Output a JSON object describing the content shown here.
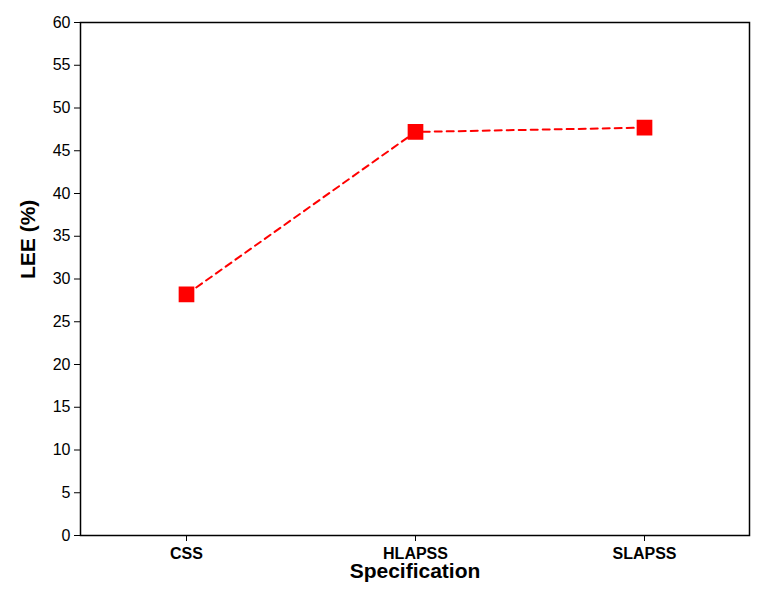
{
  "chart_data": {
    "type": "line",
    "x_label": "Specification",
    "y_label": "LEE (%)",
    "categories": [
      "CSS",
      "HLAPSS",
      "SLAPSS"
    ],
    "values": [
      28.2,
      47.2,
      47.7
    ],
    "color": "#ff0000",
    "marker": "square",
    "line_style": "dashed",
    "ylim": [
      0,
      60
    ],
    "yticks": [
      0,
      5,
      10,
      15,
      20,
      25,
      30,
      35,
      40,
      45,
      50,
      55,
      60
    ],
    "grid": false
  }
}
